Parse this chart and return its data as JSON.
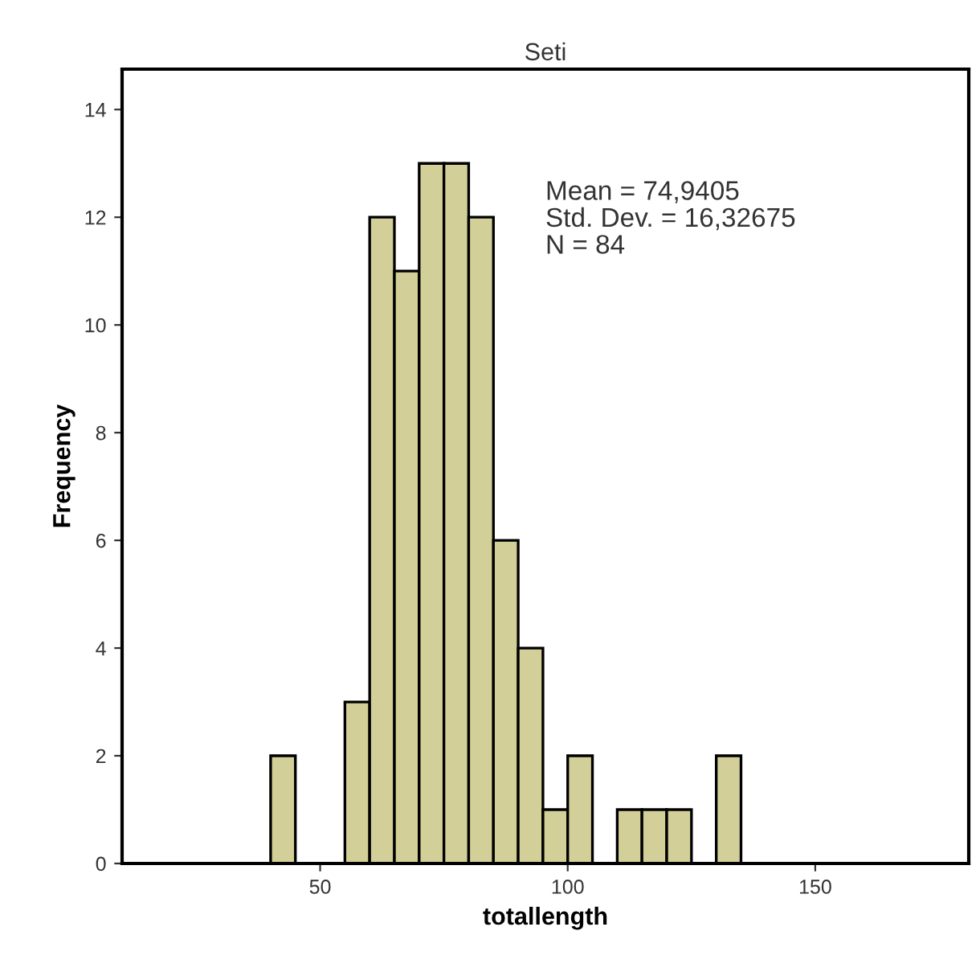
{
  "chart_data": {
    "type": "histogram",
    "title": "Seti",
    "xlabel": "totallength",
    "ylabel": "Frequency",
    "bins": [
      40,
      45,
      50,
      55,
      60,
      65,
      70,
      75,
      80,
      85,
      90,
      95,
      100,
      105,
      110,
      115,
      120,
      125,
      130,
      135
    ],
    "values": [
      2,
      0,
      0,
      3,
      12,
      11,
      13,
      13,
      12,
      6,
      4,
      1,
      2,
      0,
      1,
      1,
      1,
      0,
      2
    ],
    "color": "#d3cf98",
    "xlim": [
      10,
      181
    ],
    "xticks": [
      50,
      100,
      150
    ],
    "ylim": [
      0,
      14.75
    ],
    "yticks": [
      0,
      2,
      4,
      6,
      8,
      10,
      12,
      14
    ],
    "grid": false,
    "annotations": [
      "Mean = 74,9405\nStd. Dev. = 16,32675\nN = 84"
    ]
  }
}
